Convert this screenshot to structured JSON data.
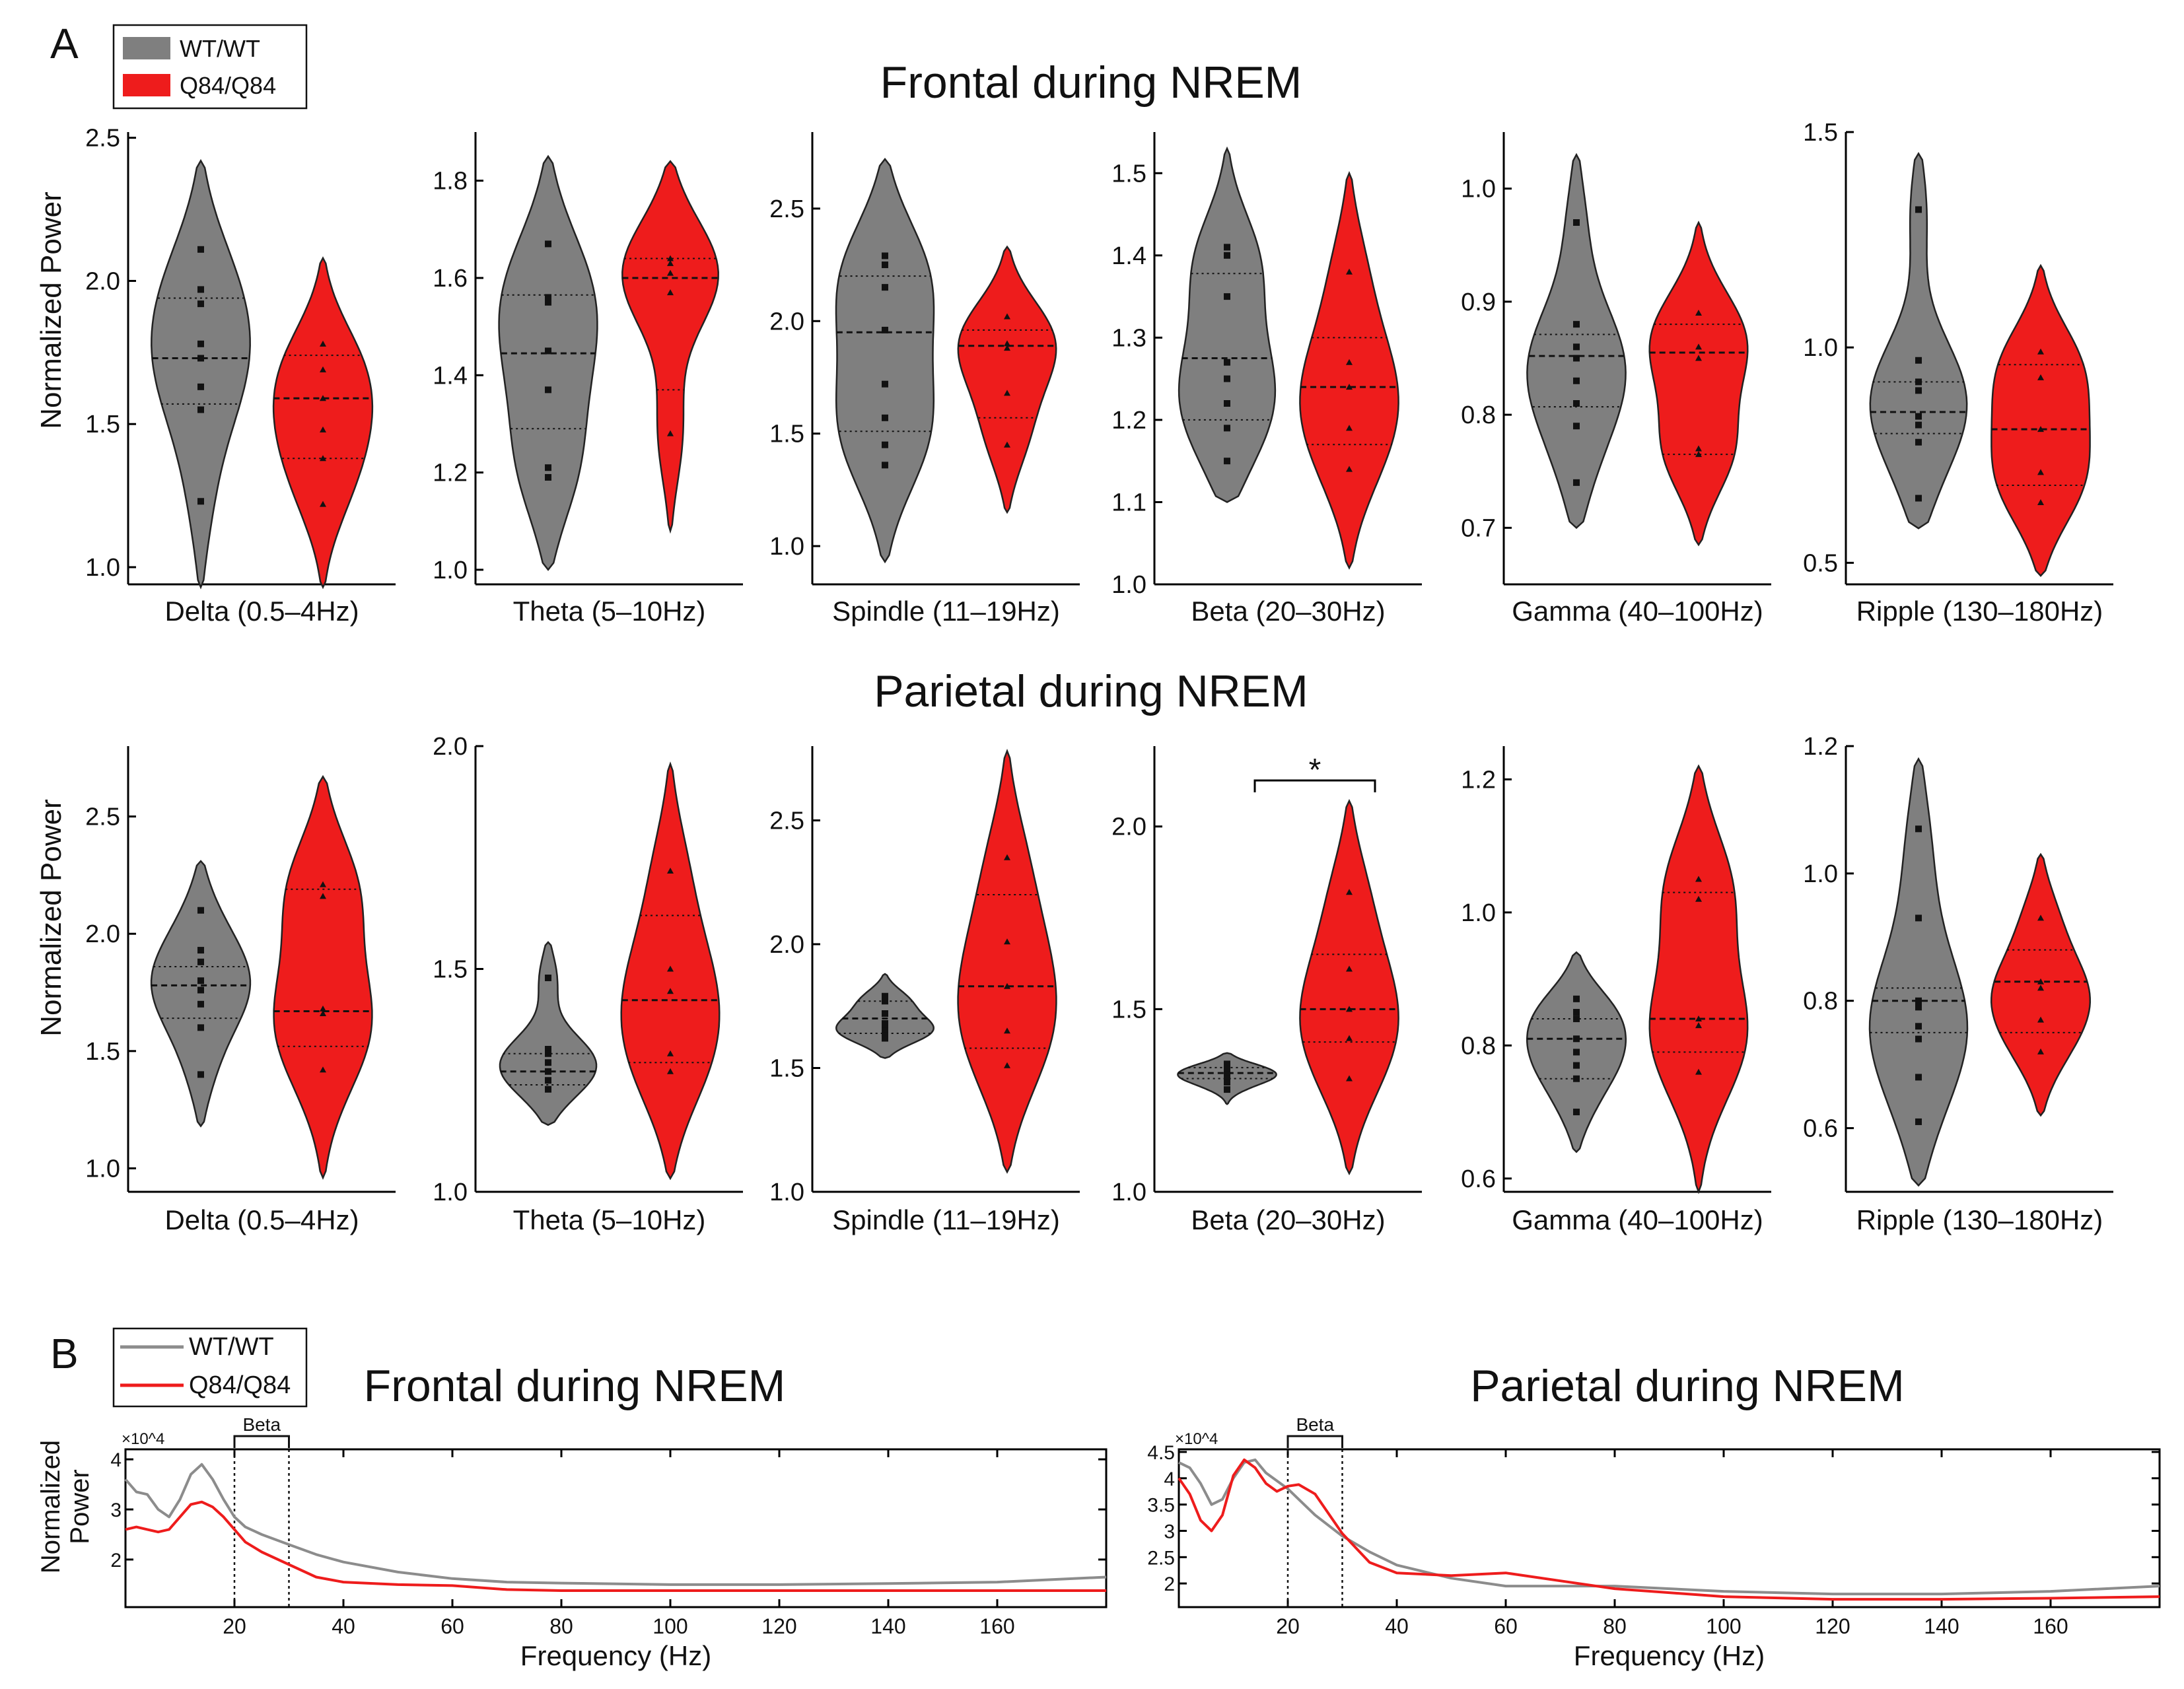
{
  "panel_labels": [
    "A",
    "B"
  ],
  "legend_a": [
    {
      "name": "WT/WT",
      "color": "#7f7f7f"
    },
    {
      "name": "Q84/Q84",
      "color": "#ee1c1c"
    }
  ],
  "legend_b": [
    {
      "name": "WT/WT",
      "color": "#8c8c8c"
    },
    {
      "name": "Q84/Q84",
      "color": "#ee1c1c"
    }
  ],
  "row_titles": [
    "Frontal during NREM",
    "Parietal during NREM"
  ],
  "ylabel_a": "Normalized Power",
  "significance_marker": "*",
  "chart_data": [
    {
      "type": "violin",
      "title": "Frontal during NREM",
      "xlabel": "Delta (0.5–4Hz)",
      "ylabel": "Normalized Power",
      "ylim": [
        0.94,
        2.52
      ],
      "yticks": [
        "1.0",
        "1.5",
        "2.0",
        "2.5"
      ],
      "series": [
        {
          "name": "WT/WT",
          "median": 1.73,
          "quartiles": [
            1.57,
            1.94
          ],
          "range": [
            0.93,
            2.42
          ],
          "points": [
            2.11,
            1.97,
            1.92,
            1.78,
            1.73,
            1.63,
            1.55,
            1.23
          ]
        },
        {
          "name": "Q84/Q84",
          "median": 1.59,
          "quartiles": [
            1.38,
            1.74
          ],
          "range": [
            0.93,
            2.08
          ],
          "points": [
            1.78,
            1.69,
            1.59,
            1.48,
            1.38,
            1.22
          ]
        }
      ]
    },
    {
      "type": "violin",
      "title": "Frontal during NREM",
      "xlabel": "Theta (5–10Hz)",
      "ylabel": "",
      "ylim": [
        0.97,
        1.9
      ],
      "yticks": [
        "1.0",
        "1.2",
        "1.4",
        "1.6",
        "1.8"
      ],
      "series": [
        {
          "name": "WT/WT",
          "median": 1.445,
          "quartiles": [
            1.29,
            1.565
          ],
          "range": [
            1.0,
            1.85
          ],
          "points": [
            1.67,
            1.56,
            1.55,
            1.45,
            1.37,
            1.21,
            1.19
          ]
        },
        {
          "name": "Q84/Q84",
          "median": 1.6,
          "quartiles": [
            1.37,
            1.64
          ],
          "range": [
            1.08,
            1.84
          ],
          "points": [
            1.64,
            1.63,
            1.61,
            1.57,
            1.28
          ]
        }
      ]
    },
    {
      "type": "violin",
      "title": "Frontal during NREM",
      "xlabel": "Spindle (11–19Hz)",
      "ylabel": "",
      "ylim": [
        0.83,
        2.84
      ],
      "yticks": [
        "1.0",
        "1.5",
        "2.0",
        "2.5"
      ],
      "series": [
        {
          "name": "WT/WT",
          "median": 1.95,
          "quartiles": [
            1.51,
            2.2
          ],
          "range": [
            0.93,
            2.72
          ],
          "points": [
            2.29,
            2.25,
            2.15,
            1.96,
            1.72,
            1.57,
            1.45,
            1.36
          ]
        },
        {
          "name": "Q84/Q84",
          "median": 1.89,
          "quartiles": [
            1.57,
            1.96
          ],
          "range": [
            1.15,
            2.33
          ],
          "points": [
            2.02,
            1.9,
            1.88,
            1.68,
            1.45
          ]
        }
      ]
    },
    {
      "type": "violin",
      "title": "Frontal during NREM",
      "xlabel": "Beta (20–30Hz)",
      "ylabel": "",
      "ylim": [
        1.0,
        1.55
      ],
      "yticks": [
        "1.0",
        "1.1",
        "1.2",
        "1.3",
        "1.4",
        "1.5"
      ],
      "series": [
        {
          "name": "WT/WT",
          "median": 1.275,
          "quartiles": [
            1.2,
            1.378
          ],
          "range": [
            1.1,
            1.53
          ],
          "points": [
            1.41,
            1.4,
            1.35,
            1.27,
            1.25,
            1.22,
            1.19,
            1.15
          ]
        },
        {
          "name": "Q84/Q84",
          "median": 1.24,
          "quartiles": [
            1.17,
            1.3
          ],
          "range": [
            1.02,
            1.5
          ],
          "points": [
            1.38,
            1.27,
            1.24,
            1.19,
            1.14
          ]
        }
      ]
    },
    {
      "type": "violin",
      "title": "Frontal during NREM",
      "xlabel": "Gamma (40–100Hz)",
      "ylabel": "",
      "ylim": [
        0.65,
        1.05
      ],
      "yticks": [
        "0.7",
        "0.8",
        "0.9",
        "1.0"
      ],
      "series": [
        {
          "name": "WT/WT",
          "median": 0.852,
          "quartiles": [
            0.807,
            0.871
          ],
          "range": [
            0.7,
            1.03
          ],
          "points": [
            0.97,
            0.88,
            0.86,
            0.85,
            0.83,
            0.81,
            0.79,
            0.74
          ]
        },
        {
          "name": "Q84/Q84",
          "median": 0.855,
          "quartiles": [
            0.765,
            0.88
          ],
          "range": [
            0.685,
            0.97
          ],
          "points": [
            0.89,
            0.86,
            0.85,
            0.77,
            0.765
          ]
        }
      ]
    },
    {
      "type": "violin",
      "title": "Frontal during NREM",
      "xlabel": "Ripple (130–180Hz)",
      "ylabel": "",
      "ylim": [
        0.45,
        1.5
      ],
      "yticks": [
        "0.5",
        "1.0",
        "1.5"
      ],
      "series": [
        {
          "name": "WT/WT",
          "median": 0.85,
          "quartiles": [
            0.8,
            0.92
          ],
          "range": [
            0.58,
            1.45
          ],
          "points": [
            1.32,
            0.97,
            0.92,
            0.9,
            0.84,
            0.82,
            0.78,
            0.65
          ]
        },
        {
          "name": "Q84/Q84",
          "median": 0.81,
          "quartiles": [
            0.68,
            0.96
          ],
          "range": [
            0.47,
            1.19
          ],
          "points": [
            0.99,
            0.93,
            0.81,
            0.71,
            0.64
          ]
        }
      ]
    },
    {
      "type": "violin",
      "title": "Parietal during NREM",
      "xlabel": "Delta (0.5–4Hz)",
      "ylabel": "Normalized Power",
      "ylim": [
        0.9,
        2.8
      ],
      "yticks": [
        "1.0",
        "1.5",
        "2.0",
        "2.5"
      ],
      "series": [
        {
          "name": "WT/WT",
          "median": 1.78,
          "quartiles": [
            1.64,
            1.86
          ],
          "range": [
            1.18,
            2.31
          ],
          "points": [
            2.1,
            1.93,
            1.88,
            1.8,
            1.76,
            1.7,
            1.6,
            1.4
          ]
        },
        {
          "name": "Q84/Q84",
          "median": 1.67,
          "quartiles": [
            1.52,
            2.19
          ],
          "range": [
            0.96,
            2.67
          ],
          "points": [
            2.21,
            2.16,
            1.68,
            1.66,
            1.42
          ]
        }
      ]
    },
    {
      "type": "violin",
      "title": "Parietal during NREM",
      "xlabel": "Theta (5–10Hz)",
      "ylabel": "",
      "ylim": [
        1.0,
        2.0
      ],
      "yticks": [
        "1.0",
        "1.5",
        "2.0"
      ],
      "series": [
        {
          "name": "WT/WT",
          "median": 1.27,
          "quartiles": [
            1.24,
            1.31
          ],
          "range": [
            1.15,
            1.56
          ],
          "points": [
            1.48,
            1.32,
            1.31,
            1.29,
            1.27,
            1.25,
            1.23
          ]
        },
        {
          "name": "Q84/Q84",
          "median": 1.43,
          "quartiles": [
            1.29,
            1.62
          ],
          "range": [
            1.03,
            1.96
          ],
          "points": [
            1.72,
            1.5,
            1.45,
            1.31,
            1.27
          ]
        }
      ]
    },
    {
      "type": "violin",
      "title": "Parietal during NREM",
      "xlabel": "Spindle (11–19Hz)",
      "ylabel": "",
      "ylim": [
        1.0,
        2.8
      ],
      "yticks": [
        "1.0",
        "1.5",
        "2.0",
        "2.5"
      ],
      "series": [
        {
          "name": "WT/WT",
          "median": 1.7,
          "quartiles": [
            1.64,
            1.77
          ],
          "range": [
            1.54,
            1.88
          ],
          "points": [
            1.79,
            1.77,
            1.72,
            1.68,
            1.66,
            1.65,
            1.63,
            1.62
          ]
        },
        {
          "name": "Q84/Q84",
          "median": 1.83,
          "quartiles": [
            1.58,
            2.2
          ],
          "range": [
            1.08,
            2.78
          ],
          "points": [
            2.35,
            2.01,
            1.83,
            1.65,
            1.51
          ]
        }
      ]
    },
    {
      "type": "violin",
      "title": "Parietal during NREM",
      "xlabel": "Beta (20–30Hz)",
      "ylabel": "",
      "ylim": [
        1.0,
        2.22
      ],
      "yticks": [
        "1.0",
        "1.5",
        "2.0"
      ],
      "series": [
        {
          "name": "WT/WT",
          "median": 1.325,
          "quartiles": [
            1.31,
            1.34
          ],
          "range": [
            1.24,
            1.38
          ],
          "points": [
            1.35,
            1.34,
            1.33,
            1.32,
            1.32,
            1.31,
            1.3,
            1.28
          ]
        },
        {
          "name": "Q84/Q84",
          "median": 1.5,
          "quartiles": [
            1.41,
            1.65
          ],
          "range": [
            1.05,
            2.07
          ],
          "points": [
            1.82,
            1.61,
            1.5,
            1.42,
            1.31
          ]
        }
      ]
    },
    {
      "type": "violin",
      "title": "Parietal during NREM",
      "xlabel": "Gamma (40–100Hz)",
      "ylabel": "",
      "ylim": [
        0.58,
        1.25
      ],
      "yticks": [
        "0.6",
        "0.8",
        "1.0",
        "1.2"
      ],
      "series": [
        {
          "name": "WT/WT",
          "median": 0.81,
          "quartiles": [
            0.75,
            0.84
          ],
          "range": [
            0.64,
            0.94
          ],
          "points": [
            0.87,
            0.85,
            0.84,
            0.81,
            0.79,
            0.77,
            0.75,
            0.7
          ]
        },
        {
          "name": "Q84/Q84",
          "median": 0.84,
          "quartiles": [
            0.79,
            1.03
          ],
          "range": [
            0.58,
            1.22
          ],
          "points": [
            1.05,
            1.02,
            0.84,
            0.83,
            0.76
          ]
        }
      ]
    },
    {
      "type": "violin",
      "title": "Parietal during NREM",
      "xlabel": "Ripple (130–180Hz)",
      "ylabel": "",
      "ylim": [
        0.5,
        1.2
      ],
      "yticks": [
        "0.6",
        "0.8",
        "1.0",
        "1.2"
      ],
      "series": [
        {
          "name": "WT/WT",
          "median": 0.8,
          "quartiles": [
            0.75,
            0.82
          ],
          "range": [
            0.51,
            1.18
          ],
          "points": [
            1.07,
            0.93,
            0.8,
            0.79,
            0.76,
            0.74,
            0.68,
            0.61
          ]
        },
        {
          "name": "Q84/Q84",
          "median": 0.83,
          "quartiles": [
            0.75,
            0.88
          ],
          "range": [
            0.62,
            1.03
          ],
          "points": [
            0.93,
            0.83,
            0.82,
            0.77,
            0.72
          ]
        }
      ]
    },
    {
      "type": "line",
      "title": "Frontal during NREM",
      "xlabel": "Frequency (Hz)",
      "ylabel": "Normalized Power",
      "xlim": [
        0,
        180
      ],
      "ylim": [
        1.05,
        4.2
      ],
      "y_multiplier": "×10^4",
      "xticks": [
        "20",
        "40",
        "60",
        "80",
        "100",
        "120",
        "140",
        "160"
      ],
      "yticks": [
        "2",
        "3",
        "4"
      ],
      "band_marker": {
        "label": "Beta",
        "x_range": [
          20,
          30
        ]
      },
      "series": [
        {
          "name": "WT/WT",
          "x": [
            0,
            2,
            4,
            6,
            8,
            10,
            12,
            14,
            16,
            18,
            20,
            22,
            25,
            30,
            35,
            40,
            50,
            60,
            70,
            80,
            100,
            120,
            140,
            160,
            180
          ],
          "y": [
            3.6,
            3.35,
            3.3,
            3.0,
            2.85,
            3.2,
            3.7,
            3.9,
            3.6,
            3.2,
            2.85,
            2.65,
            2.5,
            2.3,
            2.1,
            1.95,
            1.75,
            1.62,
            1.55,
            1.53,
            1.5,
            1.5,
            1.52,
            1.55,
            1.65
          ]
        },
        {
          "name": "Q84/Q84",
          "x": [
            0,
            2,
            4,
            6,
            8,
            10,
            12,
            14,
            16,
            18,
            20,
            22,
            25,
            30,
            35,
            40,
            50,
            60,
            70,
            80,
            100,
            120,
            140,
            160,
            180
          ],
          "y": [
            2.6,
            2.65,
            2.6,
            2.55,
            2.6,
            2.85,
            3.1,
            3.15,
            3.05,
            2.85,
            2.6,
            2.35,
            2.15,
            1.9,
            1.65,
            1.55,
            1.5,
            1.48,
            1.4,
            1.38,
            1.38,
            1.38,
            1.38,
            1.38,
            1.38
          ]
        }
      ]
    },
    {
      "type": "line",
      "title": "Parietal during NREM",
      "xlabel": "Frequency (Hz)",
      "ylabel": "Normalized Power",
      "xlim": [
        0,
        180
      ],
      "ylim": [
        1.55,
        4.55
      ],
      "y_multiplier": "×10^4",
      "xticks": [
        "20",
        "40",
        "60",
        "80",
        "100",
        "120",
        "140",
        "160"
      ],
      "yticks": [
        "2",
        "2.5",
        "3",
        "3.5",
        "4",
        "4.5"
      ],
      "band_marker": {
        "label": "Beta",
        "x_range": [
          20,
          30
        ]
      },
      "series": [
        {
          "name": "WT/WT",
          "x": [
            0,
            2,
            4,
            6,
            8,
            10,
            12,
            14,
            16,
            20,
            25,
            30,
            35,
            40,
            50,
            60,
            70,
            80,
            100,
            120,
            140,
            160,
            180
          ],
          "y": [
            4.3,
            4.2,
            3.9,
            3.5,
            3.6,
            4.0,
            4.3,
            4.35,
            4.1,
            3.8,
            3.3,
            2.9,
            2.6,
            2.35,
            2.1,
            1.95,
            1.95,
            1.95,
            1.85,
            1.8,
            1.8,
            1.85,
            1.95
          ]
        },
        {
          "name": "Q84/Q84",
          "x": [
            0,
            2,
            4,
            6,
            8,
            10,
            12,
            14,
            16,
            18,
            20,
            22,
            25,
            28,
            30,
            35,
            40,
            50,
            60,
            70,
            80,
            100,
            120,
            140,
            160,
            180
          ],
          "y": [
            4.0,
            3.7,
            3.2,
            3.0,
            3.3,
            4.05,
            4.35,
            4.2,
            3.9,
            3.75,
            3.85,
            3.88,
            3.7,
            3.25,
            2.95,
            2.4,
            2.2,
            2.15,
            2.2,
            2.05,
            1.9,
            1.75,
            1.7,
            1.7,
            1.72,
            1.75
          ]
        }
      ]
    }
  ]
}
